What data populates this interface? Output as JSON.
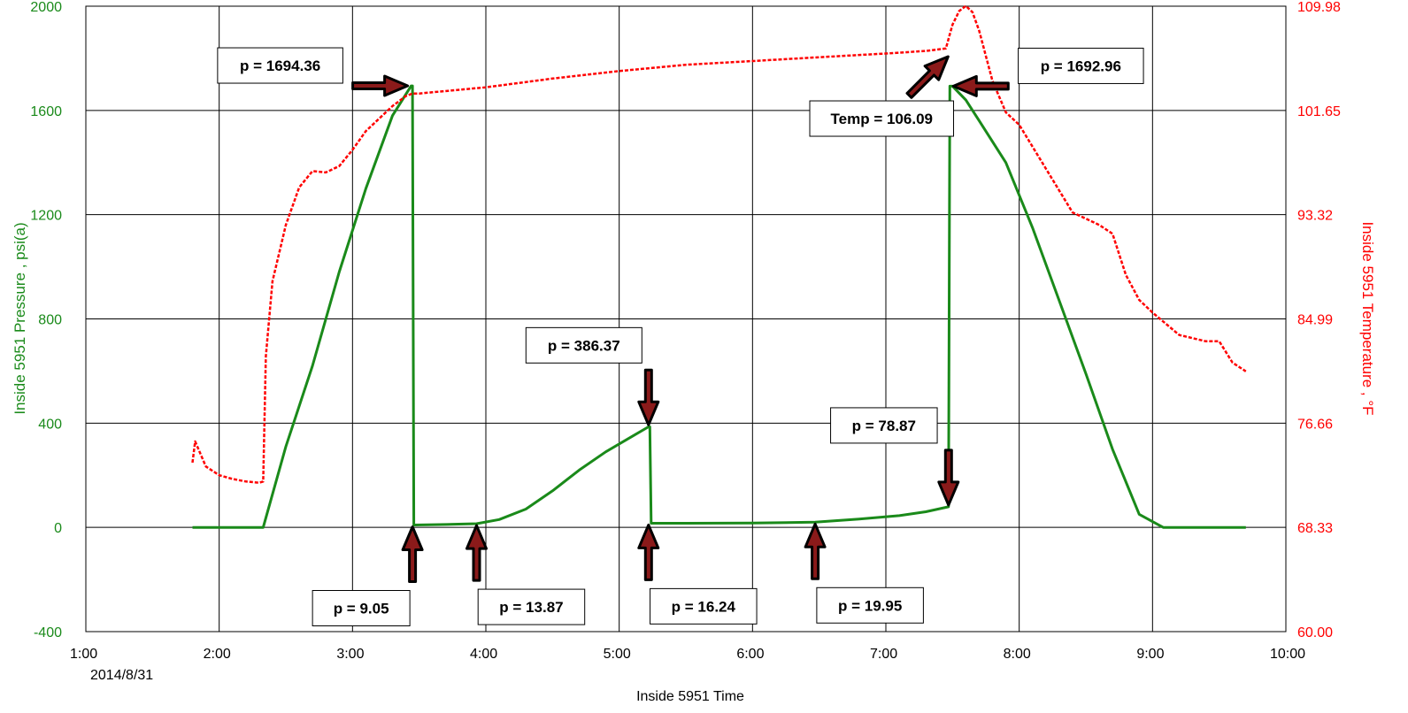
{
  "colors": {
    "pressure": "#1a8a1a",
    "pressure_axis": "#1a8a1a",
    "temperature": "#ff0000",
    "temperature_axis": "#ff0000",
    "grid": "#000000",
    "arrow_fill": "#8b1a1a",
    "arrow_outline": "#000000"
  },
  "chart_data": {
    "type": "line",
    "title": "",
    "xlabel": "Inside 5951 Time",
    "ylabel": "Inside 5951 Pressure , psi(a)",
    "y2label": "Inside 5951 Temperature , °F",
    "x_unit": "hours",
    "xlim": [
      1.0,
      10.0
    ],
    "ylim": [
      -400,
      2000
    ],
    "y2lim": [
      60.0,
      109.98
    ],
    "x_ticks": [
      {
        "value": 1,
        "label": "1:00"
      },
      {
        "value": 2,
        "label": "2:00"
      },
      {
        "value": 3,
        "label": "3:00"
      },
      {
        "value": 4,
        "label": "4:00"
      },
      {
        "value": 5,
        "label": "5:00"
      },
      {
        "value": 6,
        "label": "6:00"
      },
      {
        "value": 7,
        "label": "7:00"
      },
      {
        "value": 8,
        "label": "8:00"
      },
      {
        "value": 9,
        "label": "9:00"
      },
      {
        "value": 10,
        "label": "10:00"
      }
    ],
    "x_date_label": "2014/8/31",
    "y_ticks": [
      {
        "value": 2000,
        "label": "2000"
      },
      {
        "value": 1600,
        "label": "1600"
      },
      {
        "value": 1200,
        "label": "1200"
      },
      {
        "value": 800,
        "label": "800"
      },
      {
        "value": 400,
        "label": "400"
      },
      {
        "value": 0,
        "label": "0"
      },
      {
        "value": -400,
        "label": "-400"
      }
    ],
    "y2_ticks": [
      {
        "value": 109.98,
        "label": "109.98"
      },
      {
        "value": 101.65,
        "label": "101.65"
      },
      {
        "value": 93.32,
        "label": "93.32"
      },
      {
        "value": 84.99,
        "label": "84.99"
      },
      {
        "value": 76.66,
        "label": "76.66"
      },
      {
        "value": 68.33,
        "label": "68.33"
      },
      {
        "value": 60.0,
        "label": "60.00"
      }
    ],
    "grid": true,
    "series": [
      {
        "id": "pressure",
        "axis": "left",
        "style": "solid",
        "x": [
          1.8,
          2.33,
          2.5,
          2.7,
          2.9,
          3.1,
          3.3,
          3.44,
          3.45,
          3.46,
          3.7,
          3.93,
          4.1,
          4.3,
          4.5,
          4.7,
          4.9,
          5.1,
          5.22,
          5.23,
          5.24,
          5.5,
          6.0,
          6.47,
          6.8,
          7.1,
          7.3,
          7.47,
          7.48,
          7.5,
          7.6,
          7.7,
          7.9,
          8.1,
          8.3,
          8.5,
          8.7,
          8.9,
          9.08,
          9.1,
          9.5,
          9.7
        ],
        "y": [
          0,
          0,
          310,
          620,
          980,
          1300,
          1580,
          1694,
          1694,
          9,
          11,
          14,
          30,
          70,
          140,
          220,
          290,
          350,
          386,
          386,
          16,
          16,
          17,
          20,
          32,
          45,
          60,
          79,
          1693,
          1693,
          1640,
          1560,
          1400,
          1150,
          870,
          590,
          300,
          50,
          0,
          0,
          0,
          0
        ]
      },
      {
        "id": "temperature",
        "axis": "right",
        "style": "dashed",
        "x": [
          1.8,
          1.82,
          1.9,
          2.0,
          2.1,
          2.2,
          2.3,
          2.33,
          2.35,
          2.4,
          2.5,
          2.6,
          2.7,
          2.8,
          2.9,
          3.0,
          3.1,
          3.2,
          3.3,
          3.4,
          3.45,
          3.5,
          3.6,
          4.0,
          4.5,
          5.0,
          5.5,
          6.0,
          6.5,
          7.0,
          7.3,
          7.45,
          7.5,
          7.55,
          7.6,
          7.65,
          7.7,
          7.75,
          7.8,
          7.9,
          8.0,
          8.2,
          8.4,
          8.6,
          8.7,
          8.8,
          8.9,
          9.0,
          9.2,
          9.4,
          9.5,
          9.6,
          9.7
        ],
        "y": [
          73.5,
          75.2,
          73.2,
          72.5,
          72.2,
          72.0,
          71.9,
          72.0,
          82.0,
          88.0,
          92.5,
          95.5,
          96.8,
          96.7,
          97.2,
          98.5,
          100.0,
          101.0,
          102.0,
          102.8,
          103.0,
          103.0,
          103.1,
          103.5,
          104.2,
          104.8,
          105.3,
          105.6,
          105.9,
          106.2,
          106.4,
          106.6,
          108.5,
          109.6,
          110.0,
          109.5,
          108.0,
          106.0,
          104.0,
          101.5,
          100.5,
          97.0,
          93.5,
          92.5,
          91.8,
          88.5,
          86.5,
          85.5,
          83.7,
          83.2,
          83.2,
          81.5,
          80.8
        ]
      }
    ],
    "annotations": [
      {
        "text": "p = 1694.36",
        "axis": "left",
        "x": 3.44,
        "y": 1694.36,
        "box_side": "left"
      },
      {
        "text": "p = 9.05",
        "axis": "left",
        "x": 3.45,
        "y": 9.05,
        "box_side": "below-left"
      },
      {
        "text": "p = 13.87",
        "axis": "left",
        "x": 3.93,
        "y": 13.87,
        "box_side": "below-right"
      },
      {
        "text": "p = 386.37",
        "axis": "left",
        "x": 5.22,
        "y": 386.37,
        "box_side": "above-left"
      },
      {
        "text": "p = 16.24",
        "axis": "left",
        "x": 5.22,
        "y": 16.24,
        "box_side": "below-right"
      },
      {
        "text": "p = 19.95",
        "axis": "left",
        "x": 6.47,
        "y": 19.95,
        "box_side": "below-right"
      },
      {
        "text": "p = 78.87",
        "axis": "left",
        "x": 7.47,
        "y": 78.87,
        "box_side": "above-left"
      },
      {
        "text": "Temp = 106.09",
        "axis": "right",
        "x": 7.4,
        "y": 106.09,
        "box_side": "below-left"
      },
      {
        "text": "p = 1692.96",
        "axis": "left",
        "x": 7.48,
        "y": 1692.96,
        "box_side": "right"
      }
    ]
  }
}
